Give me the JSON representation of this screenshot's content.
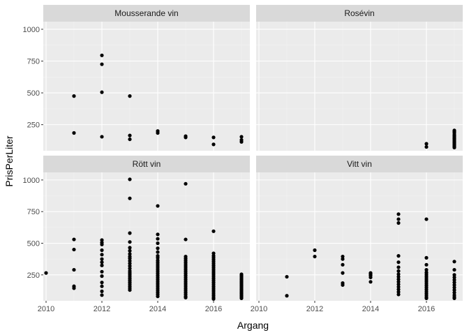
{
  "chart_data": {
    "type": "scatter",
    "facet_layout": "2x2",
    "xlabel": "Argang",
    "ylabel": "PrisPerLiter",
    "xlim": [
      2009.9,
      2017.3
    ],
    "ylim": [
      45,
      1060
    ],
    "x_ticks": [
      2010,
      2012,
      2014,
      2016
    ],
    "y_ticks": [
      250,
      500,
      750,
      1000
    ],
    "grid": true,
    "colors": {
      "panel_bg": "#ebebeb",
      "strip_bg": "#d9d9d9",
      "grid_major": "#ffffff",
      "point": "#000000"
    },
    "panels": [
      {
        "title": "Mousserande vin",
        "points": [
          [
            2011,
            475
          ],
          [
            2011,
            185
          ],
          [
            2012,
            795
          ],
          [
            2012,
            725
          ],
          [
            2012,
            505
          ],
          [
            2012,
            155
          ],
          [
            2013,
            475
          ],
          [
            2013,
            165
          ],
          [
            2013,
            135
          ],
          [
            2014,
            200
          ],
          [
            2014,
            185
          ],
          [
            2015,
            160
          ],
          [
            2015,
            150
          ],
          [
            2016,
            150
          ],
          [
            2016,
            95
          ],
          [
            2017,
            155
          ],
          [
            2017,
            130
          ],
          [
            2017,
            115
          ]
        ]
      },
      {
        "title": "Rosévin",
        "points": [
          [
            2016,
            100
          ],
          [
            2016,
            75
          ],
          [
            2017,
            205
          ],
          [
            2017,
            195
          ],
          [
            2017,
            185
          ],
          [
            2017,
            170
          ],
          [
            2017,
            160
          ],
          [
            2017,
            150
          ],
          [
            2017,
            140
          ],
          [
            2017,
            130
          ],
          [
            2017,
            120
          ],
          [
            2017,
            110
          ],
          [
            2017,
            100
          ],
          [
            2017,
            90
          ],
          [
            2017,
            80
          ],
          [
            2017,
            70
          ]
        ]
      },
      {
        "title": "Rött vin",
        "points": [
          [
            2010,
            265
          ],
          [
            2011,
            530
          ],
          [
            2011,
            450
          ],
          [
            2011,
            290
          ],
          [
            2011,
            160
          ],
          [
            2011,
            145
          ],
          [
            2012,
            525
          ],
          [
            2012,
            505
          ],
          [
            2012,
            490
          ],
          [
            2012,
            445
          ],
          [
            2012,
            410
          ],
          [
            2012,
            375
          ],
          [
            2012,
            350
          ],
          [
            2012,
            325
          ],
          [
            2012,
            275
          ],
          [
            2012,
            240
          ],
          [
            2012,
            190
          ],
          [
            2012,
            160
          ],
          [
            2012,
            120
          ],
          [
            2012,
            90
          ],
          [
            2013,
            1005
          ],
          [
            2013,
            855
          ],
          [
            2013,
            580
          ],
          [
            2013,
            510
          ],
          [
            2013,
            465
          ],
          [
            2013,
            440
          ],
          [
            2013,
            415
          ],
          [
            2013,
            395
          ],
          [
            2013,
            380
          ],
          [
            2013,
            360
          ],
          [
            2013,
            340
          ],
          [
            2013,
            320
          ],
          [
            2013,
            300
          ],
          [
            2013,
            280
          ],
          [
            2013,
            265
          ],
          [
            2013,
            250
          ],
          [
            2013,
            235
          ],
          [
            2013,
            220
          ],
          [
            2013,
            205
          ],
          [
            2013,
            190
          ],
          [
            2013,
            175
          ],
          [
            2013,
            160
          ],
          [
            2013,
            145
          ],
          [
            2013,
            130
          ],
          [
            2014,
            795
          ],
          [
            2014,
            570
          ],
          [
            2014,
            535
          ],
          [
            2014,
            500
          ],
          [
            2014,
            460
          ],
          [
            2014,
            430
          ],
          [
            2014,
            400
          ],
          [
            2014,
            385
          ],
          [
            2014,
            365
          ],
          [
            2014,
            350
          ],
          [
            2014,
            335
          ],
          [
            2014,
            320
          ],
          [
            2014,
            305
          ],
          [
            2014,
            290
          ],
          [
            2014,
            275
          ],
          [
            2014,
            260
          ],
          [
            2014,
            245
          ],
          [
            2014,
            230
          ],
          [
            2014,
            215
          ],
          [
            2014,
            200
          ],
          [
            2014,
            185
          ],
          [
            2014,
            170
          ],
          [
            2014,
            155
          ],
          [
            2014,
            140
          ],
          [
            2014,
            125
          ],
          [
            2014,
            110
          ],
          [
            2014,
            95
          ],
          [
            2014,
            80
          ],
          [
            2015,
            970
          ],
          [
            2015,
            530
          ],
          [
            2015,
            395
          ],
          [
            2015,
            380
          ],
          [
            2015,
            365
          ],
          [
            2015,
            350
          ],
          [
            2015,
            335
          ],
          [
            2015,
            320
          ],
          [
            2015,
            305
          ],
          [
            2015,
            290
          ],
          [
            2015,
            275
          ],
          [
            2015,
            260
          ],
          [
            2015,
            245
          ],
          [
            2015,
            230
          ],
          [
            2015,
            215
          ],
          [
            2015,
            200
          ],
          [
            2015,
            185
          ],
          [
            2015,
            170
          ],
          [
            2015,
            155
          ],
          [
            2015,
            140
          ],
          [
            2015,
            125
          ],
          [
            2015,
            110
          ],
          [
            2015,
            95
          ],
          [
            2015,
            80
          ],
          [
            2015,
            70
          ],
          [
            2016,
            595
          ],
          [
            2016,
            420
          ],
          [
            2016,
            400
          ],
          [
            2016,
            385
          ],
          [
            2016,
            370
          ],
          [
            2016,
            355
          ],
          [
            2016,
            340
          ],
          [
            2016,
            325
          ],
          [
            2016,
            310
          ],
          [
            2016,
            295
          ],
          [
            2016,
            280
          ],
          [
            2016,
            265
          ],
          [
            2016,
            250
          ],
          [
            2016,
            235
          ],
          [
            2016,
            220
          ],
          [
            2016,
            205
          ],
          [
            2016,
            190
          ],
          [
            2016,
            175
          ],
          [
            2016,
            160
          ],
          [
            2016,
            145
          ],
          [
            2016,
            130
          ],
          [
            2016,
            115
          ],
          [
            2016,
            100
          ],
          [
            2016,
            85
          ],
          [
            2016,
            70
          ],
          [
            2016,
            60
          ],
          [
            2017,
            255
          ],
          [
            2017,
            245
          ],
          [
            2017,
            235
          ],
          [
            2017,
            225
          ],
          [
            2017,
            215
          ],
          [
            2017,
            205
          ],
          [
            2017,
            195
          ],
          [
            2017,
            185
          ],
          [
            2017,
            175
          ],
          [
            2017,
            165
          ],
          [
            2017,
            155
          ],
          [
            2017,
            145
          ],
          [
            2017,
            135
          ],
          [
            2017,
            125
          ],
          [
            2017,
            115
          ],
          [
            2017,
            105
          ],
          [
            2017,
            95
          ],
          [
            2017,
            85
          ],
          [
            2017,
            75
          ],
          [
            2017,
            65
          ]
        ]
      },
      {
        "title": "Vitt vin",
        "points": [
          [
            2011,
            235
          ],
          [
            2011,
            85
          ],
          [
            2012,
            445
          ],
          [
            2012,
            395
          ],
          [
            2013,
            395
          ],
          [
            2013,
            375
          ],
          [
            2013,
            330
          ],
          [
            2013,
            265
          ],
          [
            2013,
            185
          ],
          [
            2013,
            170
          ],
          [
            2014,
            265
          ],
          [
            2014,
            255
          ],
          [
            2014,
            245
          ],
          [
            2014,
            230
          ],
          [
            2014,
            195
          ],
          [
            2015,
            730
          ],
          [
            2015,
            690
          ],
          [
            2015,
            660
          ],
          [
            2015,
            400
          ],
          [
            2015,
            350
          ],
          [
            2015,
            310
          ],
          [
            2015,
            280
          ],
          [
            2015,
            255
          ],
          [
            2015,
            235
          ],
          [
            2015,
            215
          ],
          [
            2015,
            195
          ],
          [
            2015,
            175
          ],
          [
            2015,
            155
          ],
          [
            2015,
            135
          ],
          [
            2015,
            115
          ],
          [
            2015,
            95
          ],
          [
            2016,
            690
          ],
          [
            2016,
            385
          ],
          [
            2016,
            330
          ],
          [
            2016,
            290
          ],
          [
            2016,
            270
          ],
          [
            2016,
            255
          ],
          [
            2016,
            240
          ],
          [
            2016,
            225
          ],
          [
            2016,
            210
          ],
          [
            2016,
            195
          ],
          [
            2016,
            180
          ],
          [
            2016,
            165
          ],
          [
            2016,
            150
          ],
          [
            2016,
            135
          ],
          [
            2016,
            120
          ],
          [
            2016,
            105
          ],
          [
            2016,
            90
          ],
          [
            2016,
            75
          ],
          [
            2016,
            65
          ],
          [
            2017,
            355
          ],
          [
            2017,
            290
          ],
          [
            2017,
            250
          ],
          [
            2017,
            230
          ],
          [
            2017,
            210
          ],
          [
            2017,
            190
          ],
          [
            2017,
            170
          ],
          [
            2017,
            150
          ],
          [
            2017,
            130
          ],
          [
            2017,
            110
          ],
          [
            2017,
            90
          ],
          [
            2017,
            75
          ],
          [
            2017,
            65
          ]
        ]
      }
    ]
  }
}
